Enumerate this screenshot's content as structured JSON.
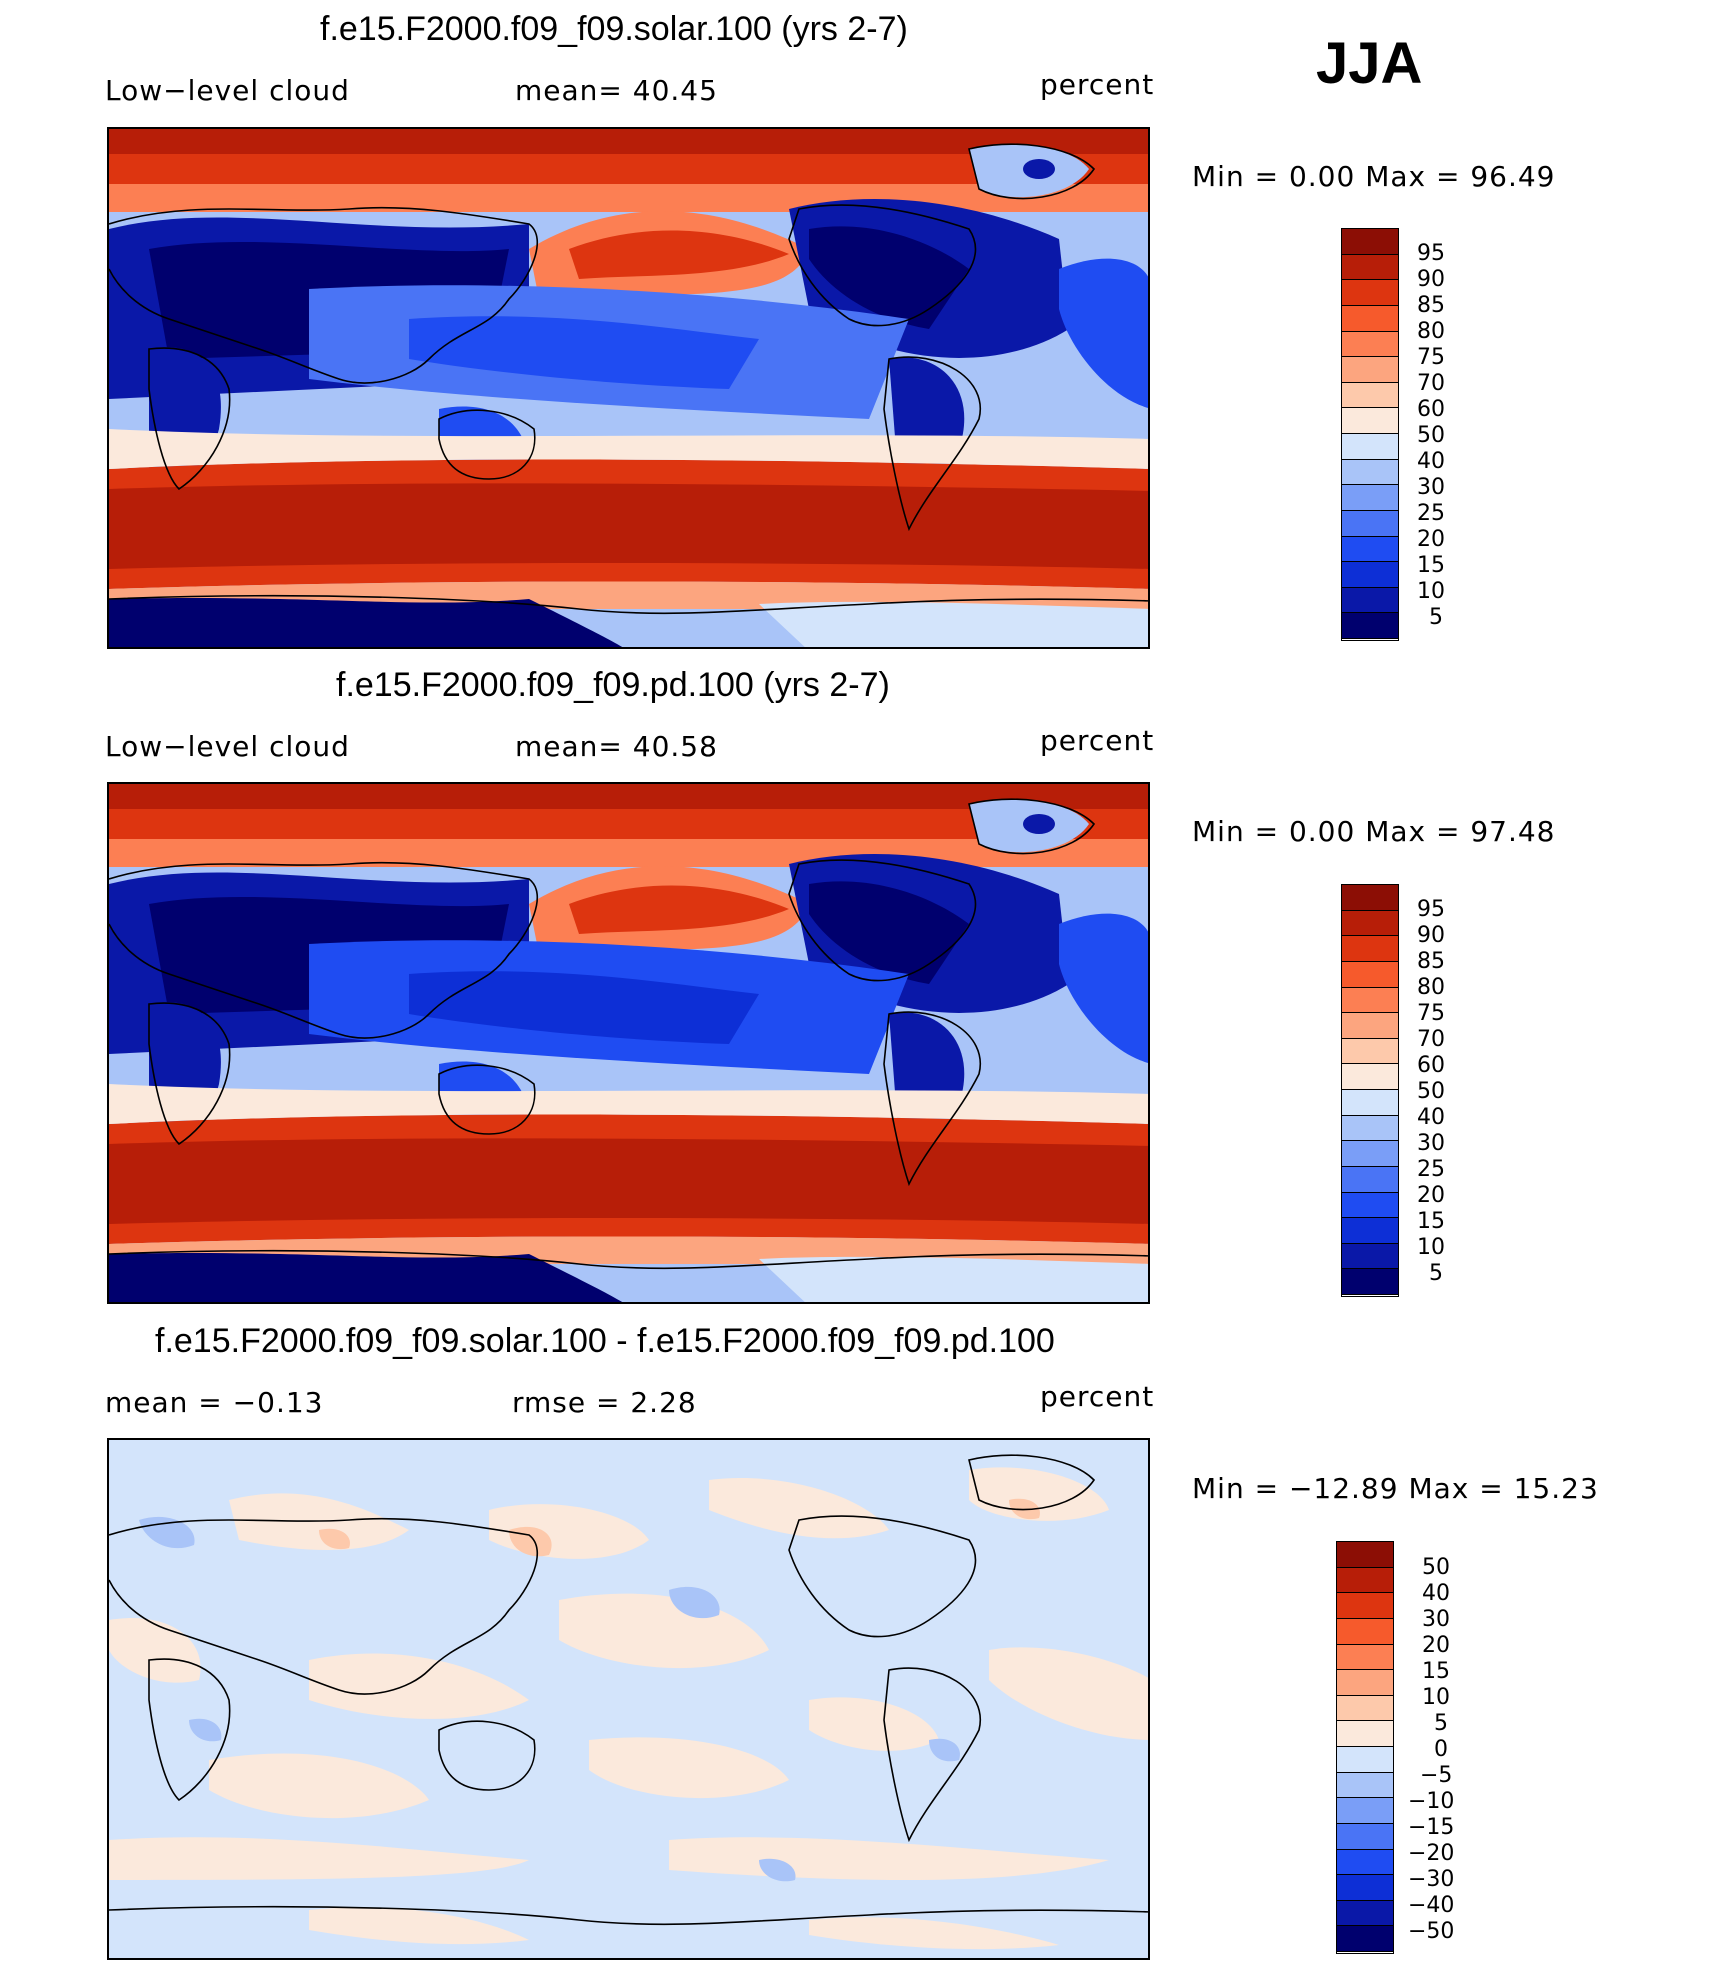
{
  "season": "JJA",
  "units": "percent",
  "palette_abs": [
    "#00006e",
    "#0a18a8",
    "#0d2fd6",
    "#1f4cf2",
    "#4a74f5",
    "#7a9ef7",
    "#a9c4f8",
    "#d3e4fb",
    "#fbe9dc",
    "#fdc9ab",
    "#fca57f",
    "#fc7f53",
    "#f65a2c",
    "#dd3510",
    "#b71e08",
    "#8c0e05"
  ],
  "palette_diff": [
    "#00006e",
    "#0a18a8",
    "#0d2fd6",
    "#1f4cf2",
    "#4a74f5",
    "#7a9ef7",
    "#a9c4f8",
    "#d3e4fb",
    "#fbe9dc",
    "#fdc9ab",
    "#fca57f",
    "#fc7f53",
    "#f65a2c",
    "#dd3510",
    "#b71e08",
    "#8c0e05"
  ],
  "panels": [
    {
      "title": "f.e15.F2000.f09_f09.solar.100 (yrs 2-7)",
      "left_label": "Low−level cloud",
      "center_label": "mean=   40.45",
      "right_label": "percent",
      "minmax": "Min  =     0.00  Max  =    96.49"
    },
    {
      "title": "f.e15.F2000.f09_f09.pd.100 (yrs 2-7)",
      "left_label": "Low−level cloud",
      "center_label": "mean=   40.58",
      "right_label": "percent",
      "minmax": "Min  =     0.00  Max  =    97.48"
    },
    {
      "title": "f.e15.F2000.f09_f09.solar.100 - f.e15.F2000.f09_f09.pd.100",
      "left_label": "mean  =    −0.13",
      "center_label": "rmse  =     2.28",
      "right_label": "percent",
      "minmax": "Min  =  −12.89  Max  =    15.23"
    }
  ],
  "colorbar_levels": {
    "abs": [
      "95",
      "90",
      "85",
      "80",
      "75",
      "70",
      "60",
      "50",
      "40",
      "30",
      "25",
      "20",
      "15",
      "10",
      "5"
    ],
    "diff": [
      "50",
      "40",
      "30",
      "20",
      "15",
      "10",
      "5",
      "0",
      "−5",
      "−10",
      "−15",
      "−20",
      "−30",
      "−40",
      "−50"
    ]
  },
  "chart_data": [
    {
      "type": "heatmap",
      "title": "f.e15.F2000.f09_f09.solar.100 (yrs 2-7)",
      "variable": "Low-level cloud",
      "units": "percent",
      "mean": 40.45,
      "min": 0.0,
      "max": 96.49,
      "levels": [
        5,
        10,
        15,
        20,
        25,
        30,
        40,
        50,
        60,
        70,
        75,
        80,
        85,
        90,
        95
      ]
    },
    {
      "type": "heatmap",
      "title": "f.e15.F2000.f09_f09.pd.100 (yrs 2-7)",
      "variable": "Low-level cloud",
      "units": "percent",
      "mean": 40.58,
      "min": 0.0,
      "max": 97.48,
      "levels": [
        5,
        10,
        15,
        20,
        25,
        30,
        40,
        50,
        60,
        70,
        75,
        80,
        85,
        90,
        95
      ]
    },
    {
      "type": "heatmap",
      "title": "f.e15.F2000.f09_f09.solar.100 - f.e15.F2000.f09_f09.pd.100",
      "units": "percent",
      "mean": -0.13,
      "rmse": 2.28,
      "min": -12.89,
      "max": 15.23,
      "levels": [
        -50,
        -40,
        -30,
        -20,
        -15,
        -10,
        -5,
        0,
        5,
        10,
        15,
        20,
        30,
        40,
        50
      ]
    }
  ]
}
